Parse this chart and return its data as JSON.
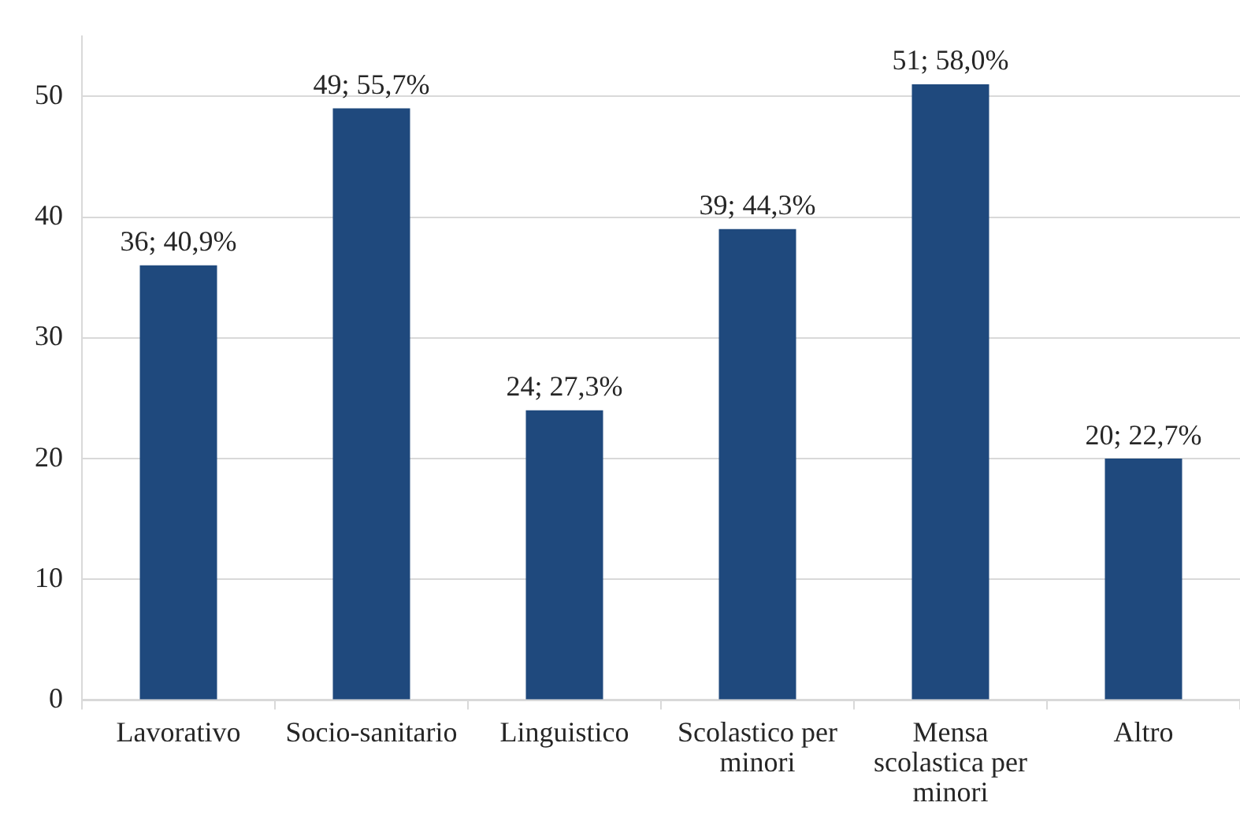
{
  "chart_data": {
    "type": "bar",
    "categories": [
      "Lavorativo",
      "Socio-sanitario",
      "Linguistico",
      "Scolastico per minori",
      "Mensa scolastica per minori",
      "Altro"
    ],
    "values": [
      36,
      49,
      24,
      39,
      51,
      20
    ],
    "value_labels": [
      "36; 40,9%",
      "49; 55,7%",
      "24; 27,3%",
      "39; 44,3%",
      "51; 58,0%",
      "20; 22,7%"
    ],
    "color": "#1f497d",
    "ylim": [
      0,
      55
    ],
    "yticks": [
      0,
      10,
      20,
      30,
      40,
      50
    ],
    "grid": "y"
  }
}
